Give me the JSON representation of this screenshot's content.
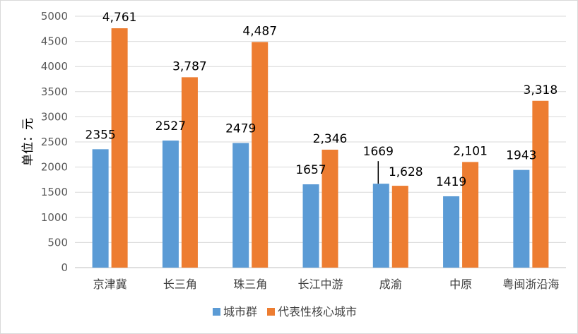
{
  "chart_data": {
    "type": "bar",
    "title": "",
    "ylabel": "单位：元",
    "xlabel": "",
    "ylim": [
      0,
      5000
    ],
    "yticks": [
      "0",
      "500",
      "1000",
      "1500",
      "2000",
      "2500",
      "3000",
      "3500",
      "4000",
      "4500",
      "5000"
    ],
    "grid": true,
    "legend_position": "bottom",
    "categories": [
      "京津冀",
      "长三角",
      "珠三角",
      "长江中游",
      "成渝",
      "中原",
      "粤闽浙沿海"
    ],
    "series": [
      {
        "name": "城市群",
        "color": "#5b9bd5",
        "values": [
          2355,
          2527,
          2479,
          1657,
          1669,
          1419,
          1943
        ],
        "labels": [
          "2355",
          "2527",
          "2479",
          "1657",
          "1669",
          "1419",
          "1943"
        ]
      },
      {
        "name": "代表性核心城市",
        "color": "#ed7d31",
        "values": [
          4761,
          3787,
          4487,
          2346,
          1628,
          2101,
          3318
        ],
        "labels": [
          "4,761",
          "3,787",
          "4,487",
          "2,346",
          "1,628",
          "2,101",
          "3,318"
        ]
      }
    ]
  }
}
